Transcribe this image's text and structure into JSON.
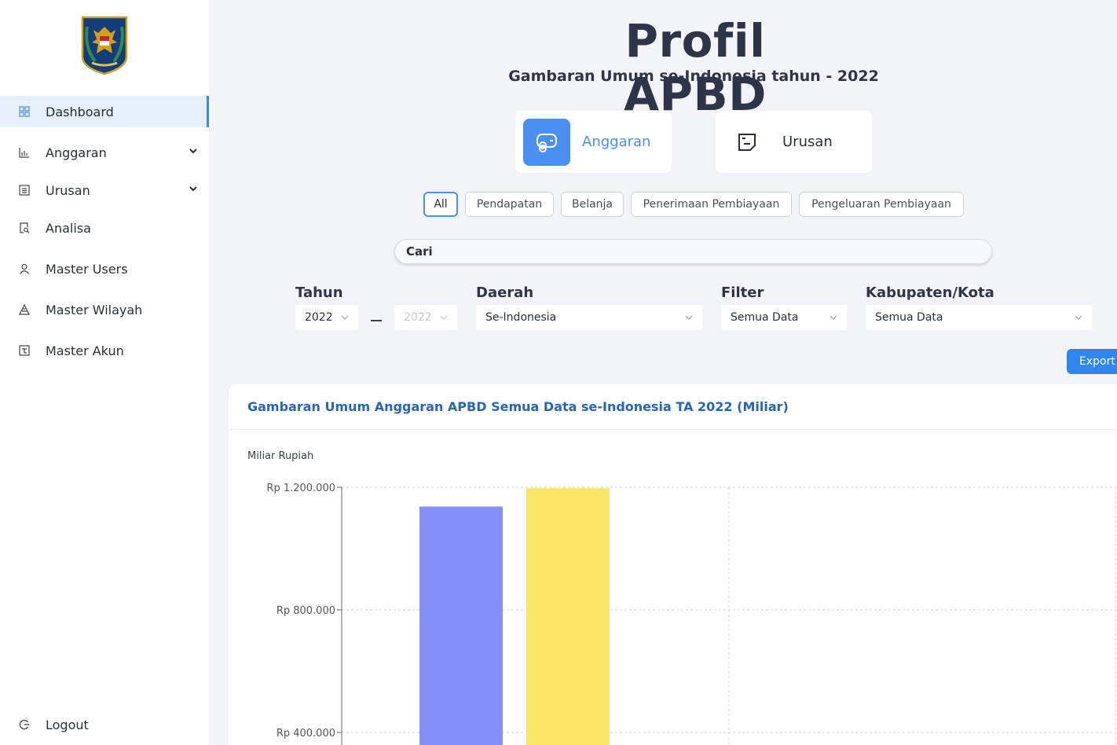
{
  "sidebar": {
    "logo": "kemendagri-emblem",
    "items": [
      {
        "label": "Dashboard",
        "icon": "grid-icon",
        "active": true,
        "expandable": false
      },
      {
        "label": "Anggaran",
        "icon": "bar-chart-icon",
        "active": false,
        "expandable": true
      },
      {
        "label": "Urusan",
        "icon": "list-icon",
        "active": false,
        "expandable": true
      },
      {
        "label": "Analisa",
        "icon": "document-search-icon",
        "active": false,
        "expandable": false
      },
      {
        "label": "Master Users",
        "icon": "user-icon",
        "active": false,
        "expandable": false
      },
      {
        "label": "Master Wilayah",
        "icon": "triangle-map-icon",
        "active": false,
        "expandable": false
      },
      {
        "label": "Master Akun",
        "icon": "account-book-icon",
        "active": false,
        "expandable": false
      }
    ],
    "logout_label": "Logout"
  },
  "header": {
    "title": "Profil APBD",
    "subtitle": "Gambaran Umum se-Indonesia tahun - 2022"
  },
  "main_tabs": [
    {
      "label": "Anggaran",
      "icon": "money-stack-icon",
      "active": true
    },
    {
      "label": "Urusan",
      "icon": "note-icon",
      "active": false
    }
  ],
  "categories": [
    "All",
    "Pendapatan",
    "Belanja",
    "Penerimaan Pembiayaan",
    "Pengeluaran Pembiayaan"
  ],
  "active_category": "All",
  "search": {
    "placeholder": "Cari",
    "value": ""
  },
  "filters": {
    "tahun": {
      "label": "Tahun",
      "from": "2022",
      "to": "2022"
    },
    "daerah": {
      "label": "Daerah",
      "value": "Se-Indonesia"
    },
    "filter": {
      "label": "Filter",
      "value": "Semua Data"
    },
    "kabupaten": {
      "label": "Kabupaten/Kota",
      "value": "Semua Data"
    }
  },
  "export_label": "Export (",
  "colors": {
    "accent": "#4b8ff0",
    "bar1": "#8690fd",
    "bar2": "#fae667",
    "title_blue": "#2766b2"
  },
  "chart_data": {
    "type": "bar",
    "title": "Gambaran Umum Anggaran APBD Semua Data se-Indonesia TA 2022 (Miliar)",
    "ylabel": "Miliar Rupiah",
    "ylim": [
      0,
      1200000
    ],
    "y_ticks": [
      "Rp 1.200.000",
      "Rp 800.000",
      "Rp 400.000"
    ],
    "y_tick_values": [
      1200000,
      800000,
      400000
    ],
    "grid": true,
    "series": [
      {
        "color": "#8690fd",
        "values": [
          1137000
        ]
      },
      {
        "color": "#fae667",
        "values": [
          1197000
        ]
      }
    ]
  }
}
